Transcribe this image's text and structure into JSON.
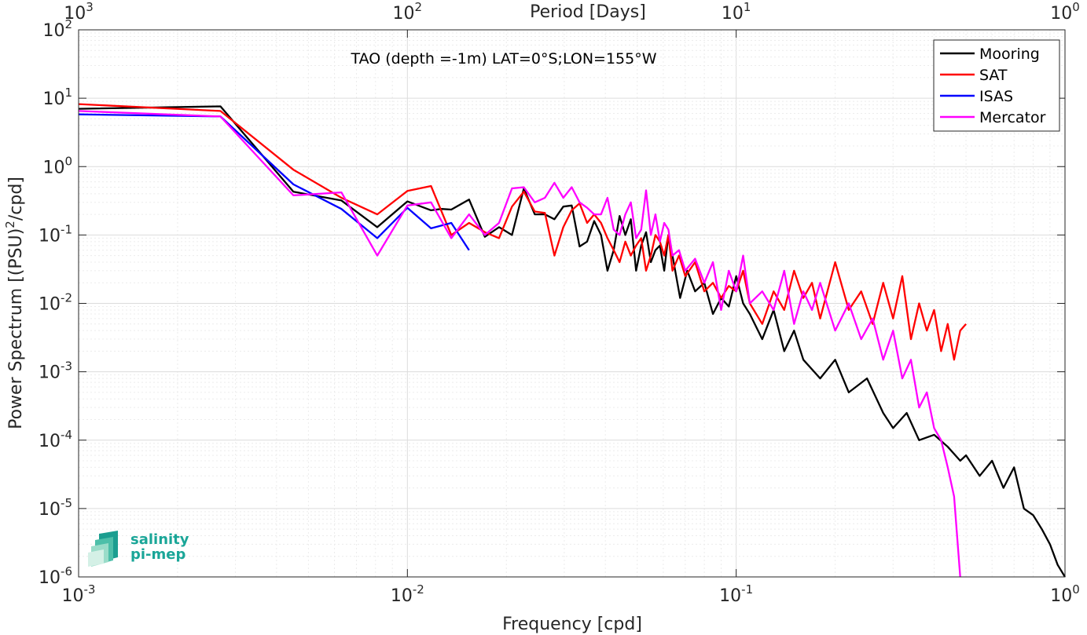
{
  "chart_data": {
    "type": "line",
    "title": "TAO (depth =-1m) LAT=0°S;LON=155°W",
    "xlabel": "Frequency [cpd]",
    "ylabel": "Power Spectrum [(PSU)",
    "ylabel_sup": "2",
    "ylabel_tail": "/cpd]",
    "top_xlabel": "Period [Days]",
    "x_scale": "log",
    "y_scale": "log",
    "xlim": [
      0.001,
      1
    ],
    "ylim": [
      1e-06,
      100
    ],
    "grid": true,
    "legend_position": "top-right",
    "x_ticks": [
      {
        "value": 0.001,
        "base": "10",
        "exp": "-3"
      },
      {
        "value": 0.01,
        "base": "10",
        "exp": "-2"
      },
      {
        "value": 0.1,
        "base": "10",
        "exp": "-1"
      },
      {
        "value": 1,
        "base": "10",
        "exp": "0"
      }
    ],
    "top_ticks": [
      {
        "value": 0.001,
        "base": "10",
        "exp": "3"
      },
      {
        "value": 0.01,
        "base": "10",
        "exp": "2"
      },
      {
        "value": 0.1,
        "base": "10",
        "exp": "1"
      },
      {
        "value": 1,
        "base": "10",
        "exp": "0"
      }
    ],
    "y_ticks": [
      {
        "value": 1e-06,
        "base": "10",
        "exp": "-6"
      },
      {
        "value": 1e-05,
        "base": "10",
        "exp": "-5"
      },
      {
        "value": 0.0001,
        "base": "10",
        "exp": "-4"
      },
      {
        "value": 0.001,
        "base": "10",
        "exp": "-3"
      },
      {
        "value": 0.01,
        "base": "10",
        "exp": "-2"
      },
      {
        "value": 0.1,
        "base": "10",
        "exp": "-1"
      },
      {
        "value": 1,
        "base": "10",
        "exp": "0"
      },
      {
        "value": 10,
        "base": "10",
        "exp": "1"
      },
      {
        "value": 100,
        "base": "10",
        "exp": "2"
      }
    ],
    "series": [
      {
        "name": "Mooring",
        "color": "#000000",
        "x": [
          0.001,
          0.0027,
          0.0045,
          0.0063,
          0.0081,
          0.01,
          0.0118,
          0.0127,
          0.0136,
          0.0154,
          0.0172,
          0.019,
          0.0208,
          0.0226,
          0.0244,
          0.0262,
          0.028,
          0.0298,
          0.0316,
          0.0334,
          0.0352,
          0.037,
          0.0388,
          0.0406,
          0.0424,
          0.0442,
          0.046,
          0.0478,
          0.0496,
          0.0514,
          0.0532,
          0.055,
          0.0568,
          0.0586,
          0.0604,
          0.0622,
          0.064,
          0.0675,
          0.071,
          0.075,
          0.08,
          0.085,
          0.09,
          0.095,
          0.1,
          0.105,
          0.11,
          0.12,
          0.13,
          0.14,
          0.15,
          0.16,
          0.18,
          0.2,
          0.22,
          0.25,
          0.28,
          0.3,
          0.33,
          0.36,
          0.4,
          0.44,
          0.48,
          0.5,
          0.55,
          0.6,
          0.65,
          0.7,
          0.75,
          0.8,
          0.85,
          0.9,
          0.95,
          1.0
        ],
        "y": [
          7.0,
          7.6,
          0.43,
          0.32,
          0.13,
          0.31,
          0.23,
          0.24,
          0.235,
          0.33,
          0.094,
          0.13,
          0.1,
          0.48,
          0.2,
          0.2,
          0.17,
          0.26,
          0.27,
          0.068,
          0.08,
          0.16,
          0.1,
          0.03,
          0.06,
          0.19,
          0.1,
          0.17,
          0.03,
          0.07,
          0.11,
          0.04,
          0.06,
          0.07,
          0.03,
          0.1,
          0.05,
          0.012,
          0.03,
          0.015,
          0.02,
          0.007,
          0.012,
          0.009,
          0.025,
          0.01,
          0.007,
          0.003,
          0.008,
          0.002,
          0.004,
          0.0015,
          0.0008,
          0.0015,
          0.0005,
          0.0008,
          0.00025,
          0.00015,
          0.00025,
          0.0001,
          0.00012,
          8e-05,
          5e-05,
          6e-05,
          3e-05,
          5e-05,
          2e-05,
          4e-05,
          1e-05,
          8e-06,
          5e-06,
          3e-06,
          1.5e-06,
          1e-06
        ]
      },
      {
        "name": "SAT",
        "color": "#ff0000",
        "x": [
          0.001,
          0.0027,
          0.0045,
          0.0063,
          0.0081,
          0.01,
          0.0118,
          0.0136,
          0.0154,
          0.0172,
          0.019,
          0.0208,
          0.0226,
          0.0244,
          0.0262,
          0.028,
          0.0298,
          0.0316,
          0.0334,
          0.0352,
          0.037,
          0.0388,
          0.0406,
          0.0424,
          0.0442,
          0.046,
          0.0478,
          0.0496,
          0.0514,
          0.0532,
          0.055,
          0.0568,
          0.0586,
          0.0604,
          0.0622,
          0.064,
          0.067,
          0.07,
          0.075,
          0.08,
          0.085,
          0.09,
          0.095,
          0.1,
          0.105,
          0.11,
          0.12,
          0.13,
          0.14,
          0.15,
          0.16,
          0.17,
          0.18,
          0.2,
          0.22,
          0.24,
          0.26,
          0.28,
          0.3,
          0.32,
          0.34,
          0.36,
          0.38,
          0.4,
          0.42,
          0.44,
          0.46,
          0.48,
          0.5
        ],
        "y": [
          8.2,
          6.5,
          0.9,
          0.35,
          0.2,
          0.44,
          0.52,
          0.1,
          0.15,
          0.11,
          0.09,
          0.26,
          0.43,
          0.22,
          0.21,
          0.05,
          0.13,
          0.23,
          0.29,
          0.15,
          0.2,
          0.15,
          0.09,
          0.06,
          0.04,
          0.08,
          0.05,
          0.07,
          0.09,
          0.03,
          0.05,
          0.1,
          0.08,
          0.05,
          0.1,
          0.03,
          0.05,
          0.025,
          0.04,
          0.015,
          0.02,
          0.012,
          0.018,
          0.015,
          0.03,
          0.01,
          0.005,
          0.015,
          0.008,
          0.03,
          0.012,
          0.02,
          0.006,
          0.04,
          0.008,
          0.015,
          0.005,
          0.02,
          0.006,
          0.025,
          0.003,
          0.01,
          0.004,
          0.008,
          0.002,
          0.005,
          0.0015,
          0.004,
          0.005
        ]
      },
      {
        "name": "ISAS",
        "color": "#0000ff",
        "x": [
          0.001,
          0.0027,
          0.0045,
          0.0063,
          0.0081,
          0.01,
          0.0118,
          0.0136,
          0.0154
        ],
        "y": [
          5.8,
          5.4,
          0.55,
          0.24,
          0.09,
          0.25,
          0.125,
          0.15,
          0.06
        ]
      },
      {
        "name": "Mercator",
        "color": "#ff00ff",
        "x": [
          0.001,
          0.0027,
          0.0045,
          0.0063,
          0.0081,
          0.01,
          0.0118,
          0.0136,
          0.0154,
          0.0172,
          0.019,
          0.0208,
          0.0226,
          0.0244,
          0.0262,
          0.028,
          0.0298,
          0.0316,
          0.0334,
          0.0352,
          0.037,
          0.0388,
          0.0406,
          0.0424,
          0.0442,
          0.046,
          0.0478,
          0.0496,
          0.0514,
          0.0532,
          0.055,
          0.0568,
          0.0586,
          0.0604,
          0.0622,
          0.064,
          0.067,
          0.07,
          0.075,
          0.08,
          0.085,
          0.09,
          0.095,
          0.1,
          0.105,
          0.11,
          0.12,
          0.13,
          0.14,
          0.15,
          0.16,
          0.17,
          0.18,
          0.2,
          0.22,
          0.24,
          0.26,
          0.28,
          0.3,
          0.32,
          0.34,
          0.36,
          0.38,
          0.4,
          0.42,
          0.44,
          0.46,
          0.48
        ],
        "y": [
          6.5,
          5.4,
          0.38,
          0.42,
          0.05,
          0.27,
          0.3,
          0.09,
          0.2,
          0.1,
          0.15,
          0.48,
          0.5,
          0.3,
          0.35,
          0.58,
          0.35,
          0.5,
          0.3,
          0.25,
          0.2,
          0.2,
          0.35,
          0.12,
          0.1,
          0.2,
          0.3,
          0.09,
          0.12,
          0.45,
          0.1,
          0.2,
          0.08,
          0.15,
          0.12,
          0.05,
          0.06,
          0.03,
          0.045,
          0.02,
          0.04,
          0.008,
          0.03,
          0.015,
          0.05,
          0.01,
          0.015,
          0.008,
          0.03,
          0.005,
          0.015,
          0.008,
          0.02,
          0.004,
          0.01,
          0.003,
          0.006,
          0.0015,
          0.004,
          0.0008,
          0.0015,
          0.0003,
          0.0005,
          0.00015,
          0.0001,
          4e-05,
          1.5e-05,
          1e-06
        ]
      }
    ]
  },
  "logo": {
    "line1": "salinity",
    "line2": "pi-mep"
  }
}
